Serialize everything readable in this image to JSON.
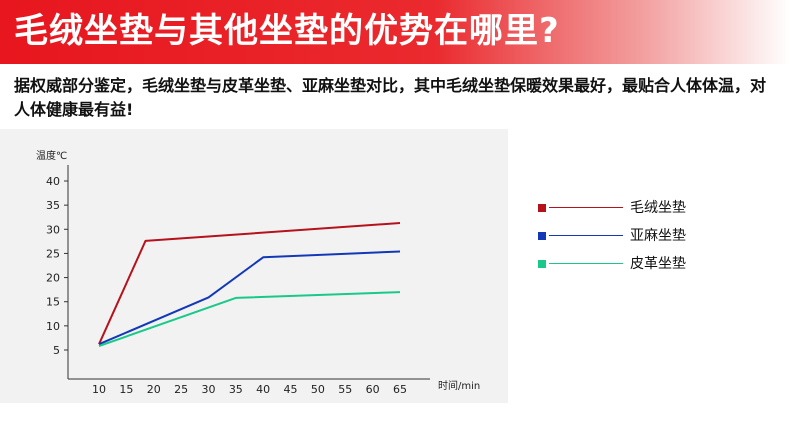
{
  "header": {
    "title": "毛绒坐垫与其他坐垫的优势在哪里?"
  },
  "intro": {
    "text": "据权威部分鉴定，毛绒坐垫与皮革坐垫、亚麻坐垫对比，其中毛绒坐垫保暖效果最好，最贴合人体体温，对人体健康最有益!"
  },
  "chart_data": {
    "type": "line",
    "title": "",
    "xlabel": "时间/min",
    "ylabel": "温度℃",
    "xlim": [
      5,
      70
    ],
    "ylim": [
      0,
      45
    ],
    "x_ticks": [
      10,
      15,
      20,
      25,
      30,
      35,
      40,
      45,
      50,
      55,
      60,
      65
    ],
    "y_ticks": [
      5,
      10,
      15,
      20,
      25,
      30,
      35,
      40
    ],
    "grid": false,
    "legend_position": "right",
    "series": [
      {
        "name": "毛绒坐垫",
        "color": "#b5121b",
        "points": [
          [
            10,
            6.2
          ],
          [
            18.5,
            27.6
          ],
          [
            65,
            31.3
          ]
        ]
      },
      {
        "name": "亚麻坐垫",
        "color": "#1238b8",
        "points": [
          [
            10,
            6.2
          ],
          [
            30,
            15.9
          ],
          [
            40,
            24.2
          ],
          [
            65,
            25.4
          ]
        ]
      },
      {
        "name": "皮革坐垫",
        "color": "#19c98a",
        "points": [
          [
            10,
            5.8
          ],
          [
            35,
            15.8
          ],
          [
            65,
            17.0
          ]
        ]
      }
    ]
  }
}
